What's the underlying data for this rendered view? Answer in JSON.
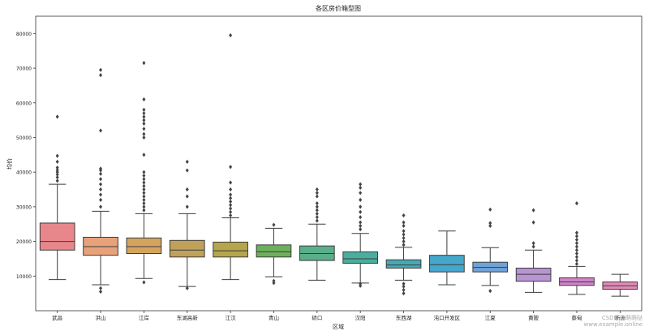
{
  "chart_data": {
    "type": "box",
    "title": "各区房价箱型图",
    "xlabel": "区域",
    "ylabel": "均价",
    "ylim": [
      0,
      85000
    ],
    "yticks": [
      10000,
      20000,
      30000,
      40000,
      50000,
      60000,
      70000,
      80000
    ],
    "grid": false,
    "legend": "none",
    "boxes": [
      {
        "category": "武昌",
        "color": "#e8878b",
        "whisker_low": 9000,
        "q1": 17500,
        "median": 20000,
        "q3": 25300,
        "whisker_high": 36500,
        "outliers": [
          37500,
          38500,
          39300,
          40000,
          40600,
          41300,
          43000,
          44700,
          56000
        ]
      },
      {
        "category": "洪山",
        "color": "#e8a27a",
        "whisker_low": 7500,
        "q1": 16000,
        "median": 18500,
        "q3": 21200,
        "whisker_high": 28700,
        "outliers": [
          5500,
          6500,
          30000,
          32000,
          33500,
          35000,
          36500,
          38000,
          39500,
          40500,
          41000,
          52000,
          68000,
          69500
        ]
      },
      {
        "category": "江岸",
        "color": "#d4a45f",
        "whisker_low": 9300,
        "q1": 16500,
        "median": 18500,
        "q3": 21000,
        "whisker_high": 28000,
        "outliers": [
          8200,
          29000,
          30000,
          31000,
          32000,
          33000,
          34000,
          35000,
          36000,
          37000,
          38000,
          39000,
          40000,
          45000,
          50000,
          51000,
          52500,
          54000,
          55000,
          56000,
          57000,
          58000,
          61000,
          71500
        ]
      },
      {
        "category": "东湖高新",
        "color": "#c0a15a",
        "whisker_low": 7000,
        "q1": 15500,
        "median": 17500,
        "q3": 20300,
        "whisker_high": 28000,
        "outliers": [
          6500,
          30000,
          33000,
          35000,
          40500,
          43000
        ]
      },
      {
        "category": "江汉",
        "color": "#b5a64c",
        "whisker_low": 9000,
        "q1": 15500,
        "median": 17300,
        "q3": 19800,
        "whisker_high": 26800,
        "outliers": [
          27500,
          28500,
          29500,
          30500,
          31500,
          32500,
          33500,
          35000,
          37000,
          41500,
          79500
        ]
      },
      {
        "category": "青山",
        "color": "#6db05c",
        "whisker_low": 9800,
        "q1": 15500,
        "median": 17000,
        "q3": 19000,
        "whisker_high": 23800,
        "outliers": [
          8000,
          8600,
          24800
        ]
      },
      {
        "category": "硚口",
        "color": "#5aae8a",
        "whisker_low": 8800,
        "q1": 14500,
        "median": 16500,
        "q3": 18700,
        "whisker_high": 25000,
        "outliers": [
          26000,
          27000,
          28000,
          29000,
          30000,
          31000,
          33000,
          34000,
          35000
        ]
      },
      {
        "category": "汉阳",
        "color": "#4aae9f",
        "whisker_low": 8000,
        "q1": 13700,
        "median": 15000,
        "q3": 17000,
        "whisker_high": 22300,
        "outliers": [
          7200,
          7800,
          23500,
          24500,
          25500,
          27000,
          28500,
          30000,
          32000,
          34000,
          35500,
          36500
        ]
      },
      {
        "category": "东西湖",
        "color": "#46a9b4",
        "whisker_low": 8800,
        "q1": 12300,
        "median": 13200,
        "q3": 14700,
        "whisker_high": 18300,
        "outliers": [
          5000,
          6000,
          7000,
          7800,
          19000,
          20000,
          21000,
          22000,
          23000,
          24500,
          25500,
          27500
        ]
      },
      {
        "category": "沌口开发区",
        "color": "#46a7cc",
        "whisker_low": 7500,
        "q1": 11200,
        "median": 13300,
        "q3": 16000,
        "whisker_high": 23000,
        "outliers": []
      },
      {
        "category": "江夏",
        "color": "#6fa3d8",
        "whisker_low": 7300,
        "q1": 11200,
        "median": 12500,
        "q3": 14000,
        "whisker_high": 18200,
        "outliers": [
          5700,
          24500,
          25300,
          29200
        ]
      },
      {
        "category": "黄陂",
        "color": "#b894d2",
        "whisker_low": 5300,
        "q1": 8500,
        "median": 10500,
        "q3": 12300,
        "whisker_high": 17500,
        "outliers": [
          18500,
          19500,
          25500,
          29000
        ]
      },
      {
        "category": "蔡甸",
        "color": "#d084c9",
        "whisker_low": 4700,
        "q1": 7300,
        "median": 8300,
        "q3": 9500,
        "whisker_high": 12800,
        "outliers": [
          13500,
          14500,
          15500,
          16500,
          17500,
          18500,
          19500,
          20500,
          21500,
          22500,
          31000
        ]
      },
      {
        "category": "新洲",
        "color": "#e38ab8",
        "whisker_low": 4200,
        "q1": 6200,
        "median": 7200,
        "q3": 8300,
        "whisker_high": 10500,
        "outliers": []
      }
    ]
  },
  "watermark": [
    "CSDN @萌萌哒",
    "www.example.online"
  ]
}
